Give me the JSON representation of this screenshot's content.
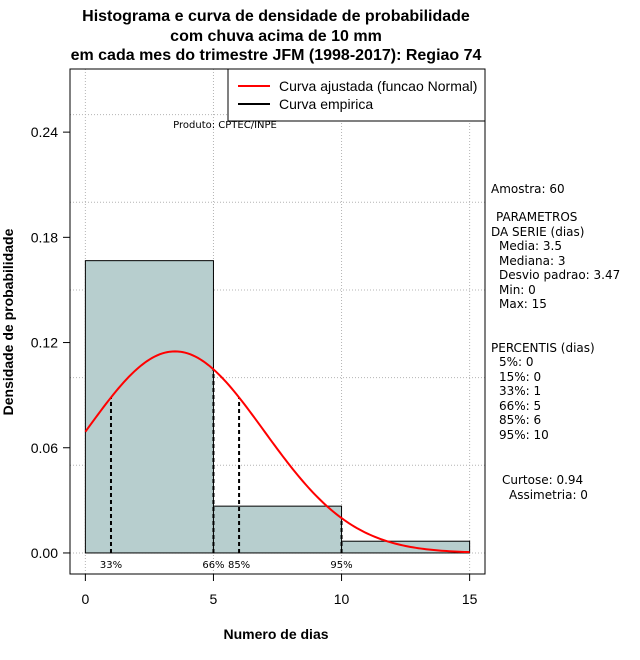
{
  "chart_data": {
    "type": "histogram",
    "title": [
      "Histograma e curva de densidade de probabilidade",
      "com chuva acima de 10 mm",
      "em cada mes do trimestre JFM (1998-2017): Regiao 74"
    ],
    "xlabel": "Numero de dias",
    "ylabel": "Densidade de probabilidade",
    "xlim": [
      -0.6,
      15.6
    ],
    "ylim": [
      -0.012,
      0.276
    ],
    "x_ticks": [
      0,
      5,
      10,
      15
    ],
    "x_tick_labels": [
      "0",
      "5",
      "10",
      "15"
    ],
    "y_ticks": [
      0.0,
      0.06,
      0.12,
      0.18,
      0.24
    ],
    "y_tick_labels": [
      "0.00",
      "0.06",
      "0.12",
      "0.18",
      "0.24"
    ],
    "grid_x": [
      0,
      5,
      10,
      15
    ],
    "grid_y": [
      0.0,
      0.05,
      0.1,
      0.15,
      0.2,
      0.25
    ],
    "bins": [
      {
        "start": 0,
        "end": 5,
        "density": 0.1667
      },
      {
        "start": 5,
        "end": 10,
        "density": 0.0267
      },
      {
        "start": 10,
        "end": 15,
        "density": 0.0067
      }
    ],
    "fitted_curve": {
      "name": "Curva ajustada (funcao Normal)",
      "distribution": "normal",
      "mean": 3.5,
      "sd": 3.47,
      "x_from": 0,
      "x_to": 15,
      "color": "#ff0000"
    },
    "empirical_curve": {
      "name": "Curva empirica",
      "color": "#000000"
    },
    "percentile_markers": [
      {
        "x": 1,
        "label": "33%"
      },
      {
        "x": 5,
        "label": "66%"
      },
      {
        "x": 6,
        "label": "85%"
      },
      {
        "x": 10,
        "label": "95%"
      }
    ],
    "legend": [
      {
        "label": "Curva ajustada (funcao Normal)",
        "color": "#ff0000"
      },
      {
        "label": "Curva empirica",
        "color": "#000000"
      }
    ],
    "legend_position": "top-right",
    "source_note": "Produto: CPTEC/INPE",
    "bar_color": "#b7cece",
    "grid": true
  },
  "side_panel": {
    "sample": "Amostra: 60",
    "params_title_1": "PARAMETROS",
    "params_title_2": "DA SERIE (dias)",
    "params": [
      "Media: 3.5",
      "Mediana: 3",
      "Desvio padrao: 3.47",
      "Min: 0",
      "Max: 15"
    ],
    "percentis_title": "PERCENTIS (dias)",
    "percentis": [
      "5%: 0",
      "15%: 0",
      "33%: 1",
      "66%: 5",
      "85%: 6",
      "95%: 10"
    ],
    "curtose": "Curtose: 0.94",
    "assimetria": "Assimetria: 0"
  }
}
